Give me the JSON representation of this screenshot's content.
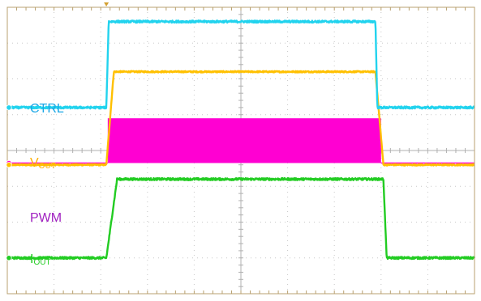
{
  "chart_data": {
    "type": "line",
    "title": "",
    "xlabel": "",
    "ylabel": "",
    "grid": true,
    "grid_divisions": {
      "x": 10,
      "y": 8
    },
    "xlim": [
      0,
      10
    ],
    "ylim": [
      0,
      8
    ],
    "series": [
      {
        "name": "CTRL",
        "label_main": "CTRL",
        "label_sub": "",
        "color": "#22d3ee",
        "shape": "step",
        "low": 5.2,
        "high": 7.6,
        "rise_start": 2.12,
        "rise_end": 2.17,
        "fall_start": 7.88,
        "fall_end": 7.92,
        "noise": 0.03
      },
      {
        "name": "VOUT",
        "label_main": "V",
        "label_sub": "OUT",
        "color": "#ffc000",
        "shape": "step",
        "low": 3.6,
        "high": 6.2,
        "rise_start": 2.12,
        "rise_end": 2.28,
        "fall_start": 7.88,
        "fall_end": 8.05,
        "noise": 0.02
      },
      {
        "name": "PWM",
        "label_main": "PWM",
        "label_sub": "",
        "color": "#ff00d2",
        "shape": "pwm_burst",
        "low": 3.65,
        "high": 4.9,
        "burst_start": 2.15,
        "burst_end": 8.0
      },
      {
        "name": "IOUT",
        "label_main": "I",
        "label_sub": "OUT",
        "color": "#22cc22",
        "shape": "step",
        "low": 1.0,
        "high": 3.2,
        "rise_start": 2.12,
        "rise_end": 2.35,
        "fall_start": 8.05,
        "fall_end": 8.12,
        "noise": 0.03
      }
    ],
    "label_colors": {
      "CTRL": "#1aa7e6",
      "VOUT": "#ffb000",
      "PWM": "#a020c0",
      "IOUT": "#22cc22"
    },
    "colors": {
      "grid": "#c8c8c8",
      "frame": "#b8a070",
      "trigger": "#d4a030"
    }
  }
}
